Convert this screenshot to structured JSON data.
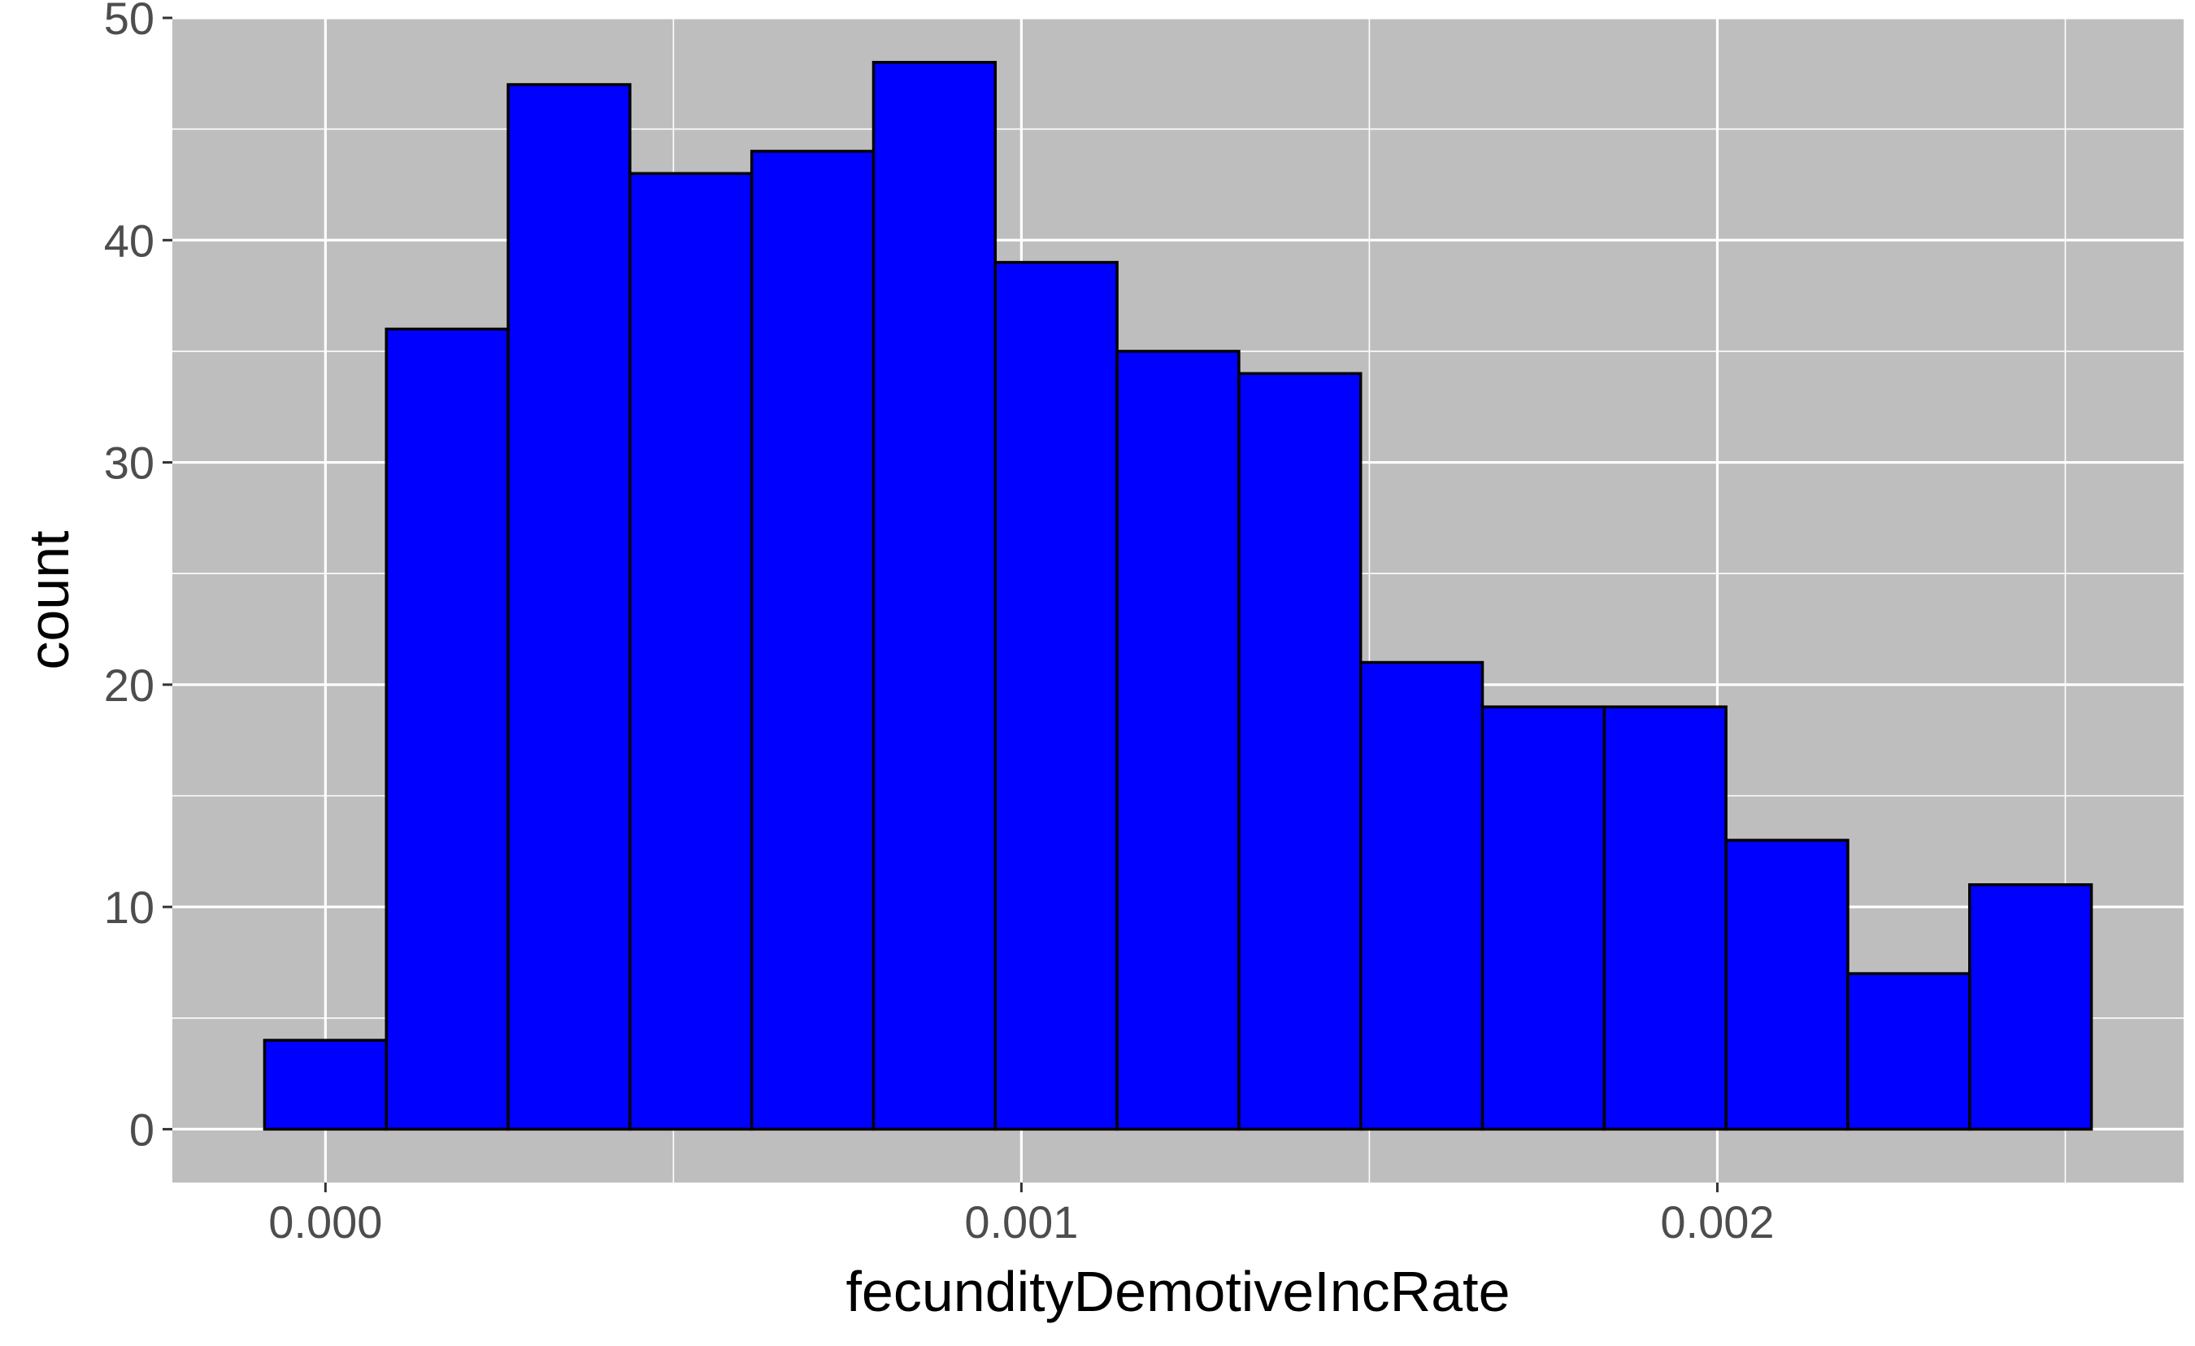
{
  "chart_data": {
    "type": "bar",
    "subtype": "histogram",
    "title": "",
    "xlabel": "fecundityDemotiveIncRate",
    "ylabel": "count",
    "bin_width": 0.000175,
    "bins": [
      {
        "start": -8.75e-05,
        "end": 8.75e-05,
        "count": 4
      },
      {
        "start": 8.75e-05,
        "end": 0.0002625,
        "count": 36
      },
      {
        "start": 0.0002625,
        "end": 0.0004375,
        "count": 47
      },
      {
        "start": 0.0004375,
        "end": 0.0006125,
        "count": 43
      },
      {
        "start": 0.0006125,
        "end": 0.0007875,
        "count": 44
      },
      {
        "start": 0.0007875,
        "end": 0.0009625,
        "count": 48
      },
      {
        "start": 0.0009625,
        "end": 0.0011375,
        "count": 39
      },
      {
        "start": 0.0011375,
        "end": 0.0013125,
        "count": 35
      },
      {
        "start": 0.0013125,
        "end": 0.0014875,
        "count": 34
      },
      {
        "start": 0.0014875,
        "end": 0.0016625,
        "count": 21
      },
      {
        "start": 0.0016625,
        "end": 0.0018375,
        "count": 19
      },
      {
        "start": 0.0018375,
        "end": 0.0020125,
        "count": 19
      },
      {
        "start": 0.0020125,
        "end": 0.0021875,
        "count": 13
      },
      {
        "start": 0.0021875,
        "end": 0.0023625,
        "count": 7
      },
      {
        "start": 0.0023625,
        "end": 0.0025375,
        "count": 11
      }
    ],
    "xlim": [
      -0.00022,
      0.00267
    ],
    "ylim": [
      -2.4,
      50
    ],
    "x_ticks": [
      {
        "value": 0.0,
        "label": "0.000"
      },
      {
        "value": 0.001,
        "label": "0.001"
      },
      {
        "value": 0.002,
        "label": "0.002"
      }
    ],
    "x_minor_ticks": [
      0.0005,
      0.0015,
      0.0025
    ],
    "y_ticks": [
      {
        "value": 0,
        "label": "0"
      },
      {
        "value": 10,
        "label": "10"
      },
      {
        "value": 20,
        "label": "20"
      },
      {
        "value": 30,
        "label": "30"
      },
      {
        "value": 40,
        "label": "40"
      },
      {
        "value": 50,
        "label": "50"
      }
    ],
    "y_minor_ticks": [
      5,
      15,
      25,
      35,
      45
    ],
    "grid": true,
    "legend": "none",
    "colors": {
      "bar_fill": "#0000ff",
      "bar_outline": "#000000",
      "panel_background": "#bebebe",
      "grid_line": "#ffffff",
      "tick_label": "#4d4d4d",
      "axis_title": "#000000"
    }
  }
}
